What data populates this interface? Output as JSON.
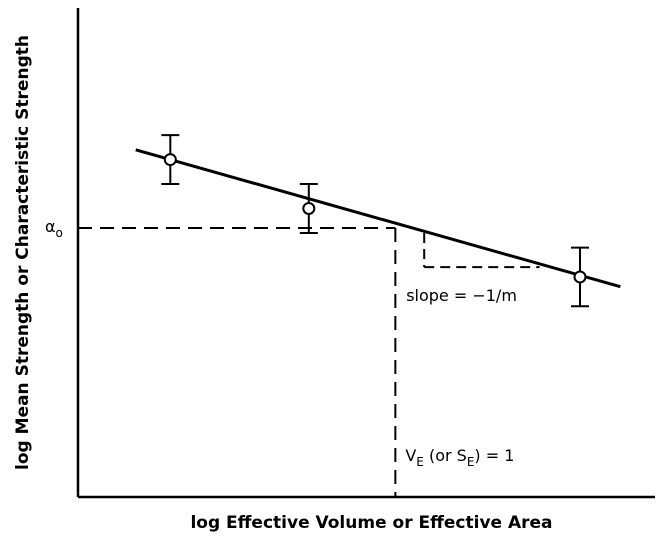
{
  "chart_data": {
    "type": "line",
    "xlabel": "log Effective Volume or Effective Area",
    "ylabel": "log Mean Strength or Characteristic Strength",
    "axis_origin": {
      "x": 0,
      "y": 0
    },
    "xlim": [
      0,
      1
    ],
    "ylim": [
      0,
      1
    ],
    "grid": false,
    "series": [
      {
        "name": "",
        "values": [
          {
            "x": 0.16,
            "y": 0.69,
            "err": 0.05
          },
          {
            "x": 0.4,
            "y": 0.59,
            "err": 0.05
          },
          {
            "x": 0.87,
            "y": 0.45,
            "err": 0.06
          }
        ]
      }
    ],
    "fit_line": {
      "x": [
        0.1,
        0.94
      ],
      "y": [
        0.71,
        0.43
      ]
    },
    "reference": {
      "x": 0.55,
      "y": 0.55
    },
    "slope_triangle": {
      "x": [
        0.6,
        0.8
      ],
      "y": [
        0.54,
        0.47
      ]
    },
    "annotations": {
      "alpha": {
        "base": "α",
        "sub": "o"
      },
      "slope": "slope = −1/m",
      "ve": {
        "v": "V",
        "v_sub": "E",
        "mid": " (or S",
        "s_sub": "E",
        "tail": ") = 1"
      }
    }
  }
}
